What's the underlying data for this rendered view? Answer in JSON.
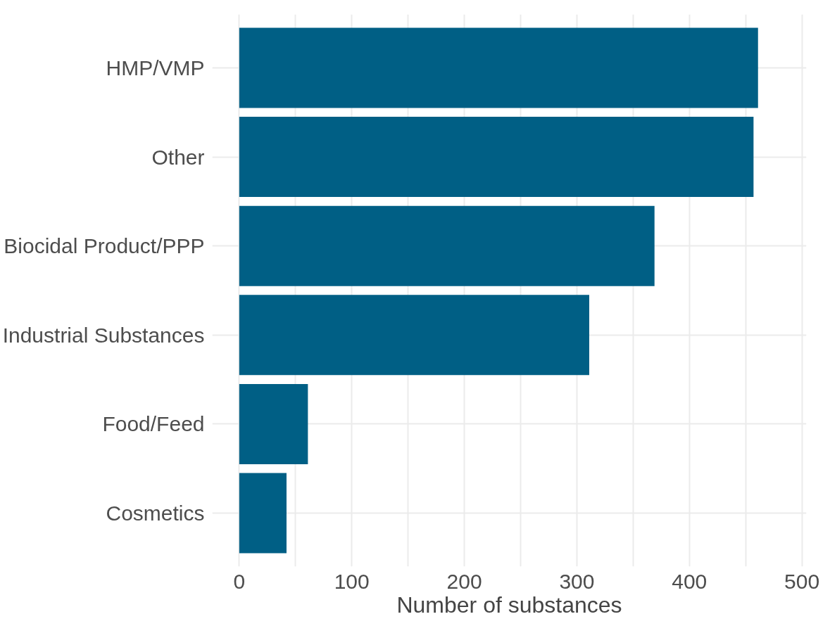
{
  "chart_data": {
    "type": "bar",
    "orientation": "horizontal",
    "xlabel": "Number of substances",
    "categories": [
      "HMP/VMP",
      "Other",
      "Biocidal Product/PPP",
      "Industrial Substances",
      "Food/Feed",
      "Cosmetics"
    ],
    "values": [
      461,
      457,
      369,
      311,
      61,
      42
    ],
    "color": "#005f85",
    "xlim": [
      -24,
      504
    ],
    "xticks": [
      0,
      {
        "value": 50,
        "label": null
      },
      100,
      {
        "value": 150,
        "label": null
      },
      200,
      {
        "value": 250,
        "label": null
      },
      300,
      {
        "value": 350,
        "label": null
      },
      400,
      {
        "value": 450,
        "label": null
      },
      500
    ],
    "grid": true
  }
}
